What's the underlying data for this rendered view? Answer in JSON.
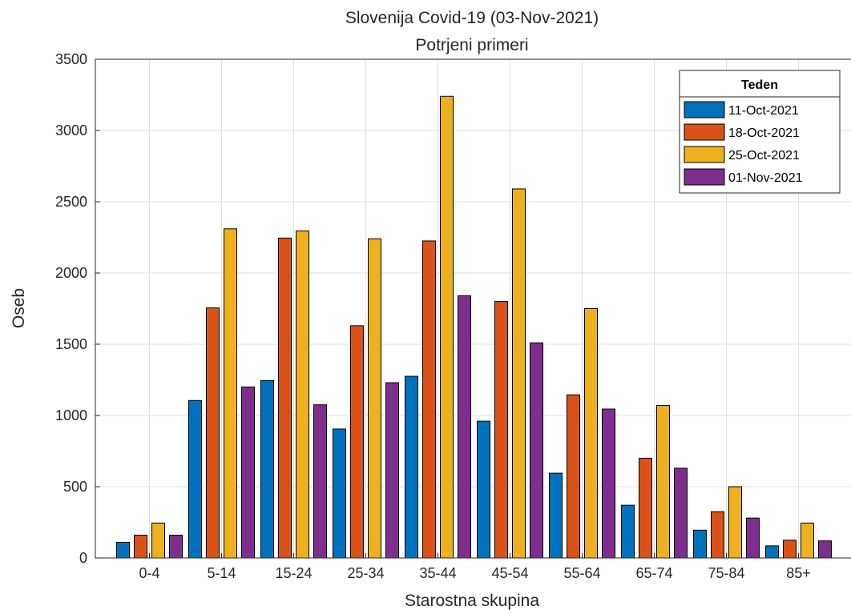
{
  "chart_data": {
    "type": "bar",
    "title": "Slovenija Covid-19 (03-Nov-2021)",
    "subtitle": "Potrjeni primeri",
    "xlabel": "Starostna skupina",
    "ylabel": "Oseb",
    "ylim": [
      0,
      3500
    ],
    "yticks": [
      0,
      500,
      1000,
      1500,
      2000,
      2500,
      3000,
      3500
    ],
    "grid": true,
    "legend_title": "Teden",
    "legend_position": "top-right",
    "categories": [
      "0-4",
      "5-14",
      "15-24",
      "25-34",
      "35-44",
      "45-54",
      "55-64",
      "65-74",
      "75-84",
      "85+"
    ],
    "series": [
      {
        "name": "11-Oct-2021",
        "color": "#0072BD",
        "values": [
          110,
          1105,
          1245,
          905,
          1275,
          960,
          595,
          370,
          195,
          85
        ]
      },
      {
        "name": "18-Oct-2021",
        "color": "#D95319",
        "values": [
          160,
          1755,
          2245,
          1630,
          2225,
          1800,
          1145,
          700,
          325,
          125
        ]
      },
      {
        "name": "25-Oct-2021",
        "color": "#EDB120",
        "values": [
          245,
          2310,
          2295,
          2240,
          3240,
          2590,
          1750,
          1070,
          500,
          245
        ]
      },
      {
        "name": "01-Nov-2021",
        "color": "#7E2F8E",
        "values": [
          160,
          1200,
          1075,
          1230,
          1840,
          1510,
          1045,
          630,
          280,
          120
        ]
      }
    ]
  }
}
